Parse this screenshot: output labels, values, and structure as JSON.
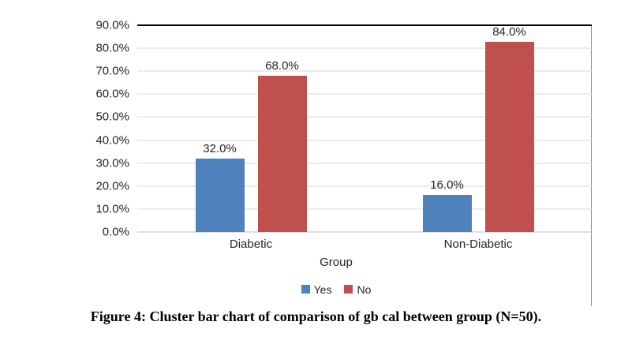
{
  "chart_data": {
    "type": "bar",
    "title": "",
    "categories": [
      "Diabetic",
      "Non-Diabetic"
    ],
    "series": [
      {
        "name": "Yes",
        "color": "#4F81BD",
        "values": [
          32.0,
          16.0
        ]
      },
      {
        "name": "No",
        "color": "#C0504D",
        "values": [
          68.0,
          84.0
        ]
      }
    ],
    "value_labels": [
      [
        "32.0%",
        "68.0%"
      ],
      [
        "16.0%",
        "84.0%"
      ]
    ],
    "xlabel": "Group",
    "ylabel": "",
    "ylim": [
      0,
      90
    ],
    "ytick_step": 10,
    "yticks": [
      "0.0%",
      "10.0%",
      "20.0%",
      "30.0%",
      "40.0%",
      "50.0%",
      "60.0%",
      "70.0%",
      "80.0%",
      "90.0%"
    ],
    "grid": true,
    "legend_position": "bottom"
  },
  "caption": "Figure 4: Cluster bar chart of comparison of gb cal between group (N=50)."
}
